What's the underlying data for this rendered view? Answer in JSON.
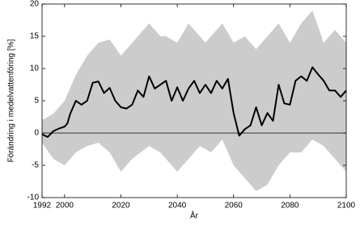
{
  "chart_data": {
    "type": "line",
    "x_label": "År",
    "y_label": "Förändring i medelvattenföring [%]",
    "xlim": [
      1992,
      2100
    ],
    "xticks": [
      1992,
      2000,
      2020,
      2040,
      2060,
      2080,
      2100
    ],
    "ylim": [
      -10,
      20
    ],
    "yticks": [
      -10,
      -5,
      0,
      5,
      10,
      15,
      20
    ],
    "grid": false,
    "zero_line": true,
    "band": {
      "color": "#cccccc",
      "x": [
        1992,
        1996,
        2000,
        2004,
        2008,
        2012,
        2016,
        2020,
        2024,
        2030,
        2034,
        2036,
        2040,
        2044,
        2048,
        2050,
        2052,
        2056,
        2060,
        2064,
        2068,
        2072,
        2076,
        2080,
        2084,
        2088,
        2092,
        2096,
        2100
      ],
      "upper": [
        2,
        3,
        5,
        9,
        12,
        14,
        14.5,
        12,
        14,
        17,
        15,
        15,
        14,
        17,
        15,
        14,
        15,
        17,
        14,
        15,
        13,
        15,
        17,
        14,
        17,
        19,
        14,
        16,
        14
      ],
      "lower": [
        -1.5,
        -4,
        -5,
        -3,
        -2,
        -1.5,
        -3,
        -6,
        -4,
        -2,
        -3,
        -4,
        -6,
        -4,
        -2,
        -2.5,
        -3,
        -1,
        -5,
        -7,
        -9,
        -8,
        -5,
        -3,
        -3,
        -1,
        -2,
        -4,
        -6
      ]
    },
    "series": [
      {
        "color": "#000000",
        "x": [
          1992,
          1994,
          1996,
          1998,
          2000,
          2001,
          2002,
          2004,
          2006,
          2008,
          2010,
          2012,
          2014,
          2016,
          2018,
          2020,
          2022,
          2024,
          2026,
          2028,
          2030,
          2032,
          2034,
          2036,
          2038,
          2040,
          2042,
          2044,
          2046,
          2048,
          2050,
          2052,
          2054,
          2056,
          2058,
          2060,
          2062,
          2064,
          2066,
          2068,
          2070,
          2072,
          2074,
          2076,
          2078,
          2080,
          2082,
          2084,
          2086,
          2088,
          2090,
          2092,
          2094,
          2096,
          2098,
          2100
        ],
        "values": [
          -0.2,
          -0.6,
          0.3,
          0.7,
          1,
          1.5,
          3,
          5,
          4.4,
          5,
          7.8,
          8,
          6.2,
          7,
          5,
          4,
          3.8,
          4.4,
          6.6,
          5.6,
          8.8,
          6.9,
          7.5,
          8.1,
          5,
          7.1,
          5,
          6.9,
          8.1,
          6.2,
          7.5,
          6.2,
          8.1,
          6.9,
          8.4,
          3.1,
          -0.4,
          0.6,
          1.2,
          4,
          1.2,
          3.1,
          1.9,
          7.5,
          4.6,
          4.4,
          8.1,
          8.8,
          8.1,
          10.2,
          9.1,
          8.1,
          6.6,
          6.6,
          5.6,
          6.6
        ]
      }
    ]
  }
}
